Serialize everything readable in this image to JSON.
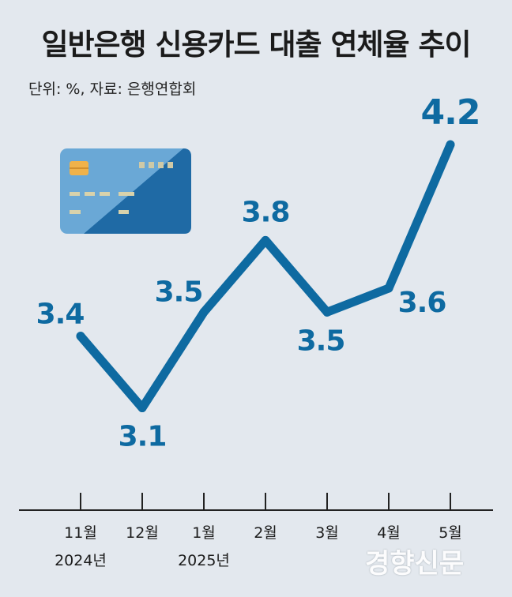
{
  "title": "일반은행 신용카드 대출 연체율 추이",
  "subtitle": "단위: %, 자료: 은행연합회",
  "watermark": "경향신문",
  "colors": {
    "line": "#0e6aa1",
    "axis": "#222222",
    "background": "#e3e8ee"
  },
  "icon": "credit-card-icon",
  "chart_data": {
    "type": "line",
    "categories": [
      "11월",
      "12월",
      "1월",
      "2월",
      "3월",
      "4월",
      "5월"
    ],
    "year_labels": [
      "2024년",
      "",
      "2025년",
      "",
      "",
      "",
      ""
    ],
    "values": [
      3.4,
      3.1,
      3.5,
      3.8,
      3.5,
      3.6,
      4.2
    ],
    "value_labels": [
      "3.4",
      "3.1",
      "3.5",
      "3.8",
      "3.5",
      "3.6",
      "4.2"
    ],
    "ylim": [
      2.95,
      4.25
    ],
    "grid": false,
    "title": "일반은행 신용카드 대출 연체율 추이",
    "xlabel": "",
    "ylabel": ""
  }
}
